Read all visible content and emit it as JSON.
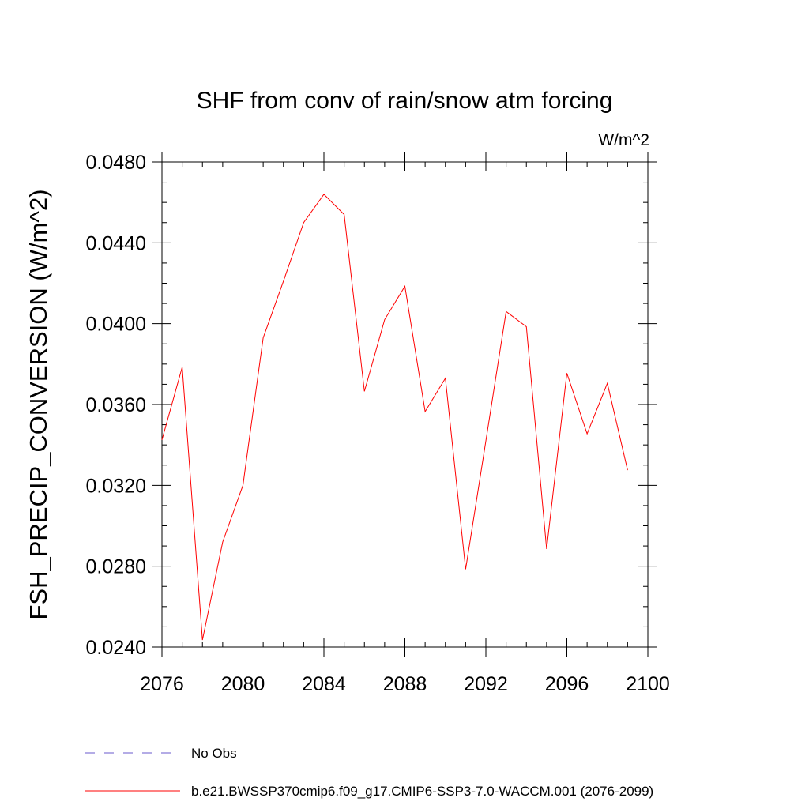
{
  "chart_data": {
    "type": "line",
    "title": "SHF from conv of rain/snow atm forcing",
    "units": "W/m^2",
    "ylabel": "FSH_PRECIP_CONVERSION  (W/m^2)",
    "xlabel": "",
    "xlim": [
      2076,
      2100
    ],
    "ylim": [
      0.024,
      0.048
    ],
    "x_ticks": [
      2076,
      2080,
      2084,
      2088,
      2092,
      2096,
      2100
    ],
    "x_tick_labels": [
      "2076",
      "2080",
      "2084",
      "2088",
      "2092",
      "2096",
      "2100"
    ],
    "y_ticks": [
      0.024,
      0.028,
      0.032,
      0.036,
      0.04,
      0.044,
      0.048
    ],
    "y_tick_labels": [
      "0.0240",
      "0.0280",
      "0.0320",
      "0.0360",
      "0.0400",
      "0.0440",
      "0.0480"
    ],
    "grid": false,
    "legend_position": "bottom",
    "series": [
      {
        "name": "No Obs",
        "color": "#6a5acd",
        "dash": "dashed",
        "x": [],
        "values": []
      },
      {
        "name": "b.e21.BWSSP370cmip6.f09_g17.CMIP6-SSP3-7.0-WACCM.001 (2076-2099)",
        "color": "#ff0000",
        "dash": "solid",
        "x": [
          2076,
          2077,
          2078,
          2079,
          2080,
          2081,
          2082,
          2083,
          2084,
          2085,
          2086,
          2087,
          2088,
          2089,
          2090,
          2091,
          2092,
          2093,
          2094,
          2095,
          2096,
          2097,
          2098,
          2099
        ],
        "values": [
          0.03425,
          0.03785,
          0.02435,
          0.0292,
          0.032,
          0.0393,
          0.0421,
          0.045,
          0.0464,
          0.0454,
          0.03665,
          0.0402,
          0.04185,
          0.03565,
          0.0373,
          0.02785,
          0.0342,
          0.0406,
          0.03985,
          0.02885,
          0.03755,
          0.03455,
          0.03705,
          0.03275
        ]
      }
    ]
  }
}
